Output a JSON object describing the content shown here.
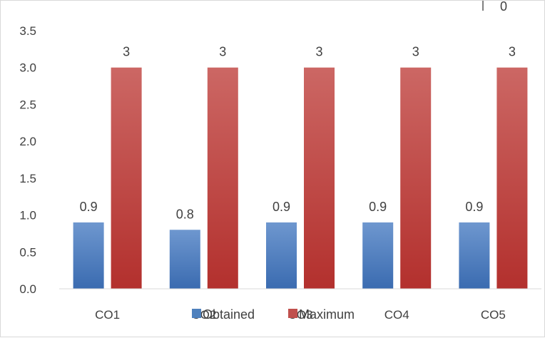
{
  "chart_data": {
    "type": "bar",
    "categories": [
      "CO1",
      "CO2",
      "CO3",
      "CO4",
      "CO5"
    ],
    "series": [
      {
        "name": "Obtained",
        "values": [
          0.9,
          0.8,
          0.9,
          0.9,
          0.9
        ],
        "data_labels": [
          "0.9",
          "0.8",
          "0.9",
          "0.9",
          "0.9"
        ],
        "color": "#4f81bd"
      },
      {
        "name": "Maximum",
        "values": [
          3,
          3,
          3,
          3,
          3
        ],
        "data_labels": [
          "3",
          "3",
          "3",
          "3",
          "3"
        ],
        "color": "#c0504d"
      }
    ],
    "ylim": [
      0,
      3.5
    ],
    "yticks": [
      "0.0",
      "0.5",
      "1.0",
      "1.5",
      "2.0",
      "2.5",
      "3.0",
      "3.5"
    ],
    "grid": false,
    "legend": "bottom",
    "title": "",
    "xlabel": "",
    "ylabel": ""
  },
  "corner_text": "0"
}
